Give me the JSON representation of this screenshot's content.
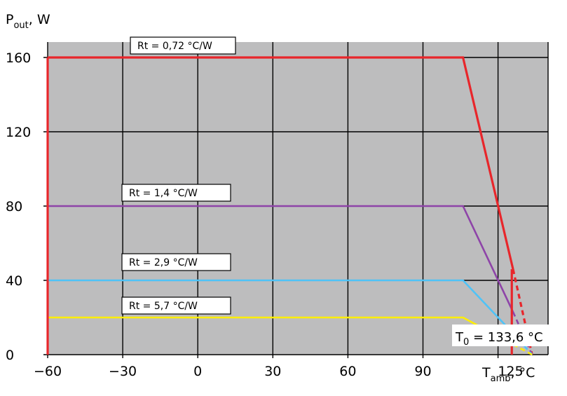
{
  "chart_data": {
    "type": "line",
    "ylabel": {
      "main": "P",
      "sub": "out",
      "rest": ", W"
    },
    "xlabel": {
      "main": "T",
      "sub": "amb",
      "rest": ", °C"
    },
    "xlim": [
      -60,
      140
    ],
    "ylim": [
      0,
      160
    ],
    "x_ticks": [
      {
        "value": -60,
        "label": "−60"
      },
      {
        "value": -30,
        "label": "−30"
      },
      {
        "value": 0,
        "label": "0"
      },
      {
        "value": 30,
        "label": "30"
      },
      {
        "value": 60,
        "label": "60"
      },
      {
        "value": 90,
        "label": "90"
      },
      {
        "value": 125,
        "label": "125"
      }
    ],
    "x_gridlines": [
      -60,
      -30,
      0,
      30,
      60,
      90,
      120
    ],
    "y_ticks": [
      {
        "value": 0,
        "label": "0"
      },
      {
        "value": 40,
        "label": "40"
      },
      {
        "value": 80,
        "label": "80"
      },
      {
        "value": 120,
        "label": "120"
      },
      {
        "value": 160,
        "label": "160"
      }
    ],
    "grid": true,
    "background": "#bdbdbe",
    "series": [
      {
        "name": "Rt = 0,72 °C/W",
        "color": "#e8262b",
        "points": [
          [
            -60,
            160
          ],
          [
            106,
            160
          ],
          [
            126,
            46
          ]
        ],
        "dashed": [
          [
            126,
            46
          ],
          [
            133.6,
            0
          ]
        ]
      },
      {
        "name": "Rt = 1,4 °C/W",
        "color": "#8e44a8",
        "points": [
          [
            -60,
            80
          ],
          [
            106,
            80
          ],
          [
            126,
            23
          ]
        ],
        "dashed": [
          [
            126,
            23
          ],
          [
            133.6,
            0
          ]
        ]
      },
      {
        "name": "Rt = 2,9 °C/W",
        "color": "#4fc3f7",
        "points": [
          [
            -60,
            40
          ],
          [
            106,
            40
          ],
          [
            126,
            11.5
          ]
        ],
        "dashed": [
          [
            126,
            11.5
          ],
          [
            133.6,
            0
          ]
        ]
      },
      {
        "name": "Rt = 5,7 °C/W",
        "color": "#ffee00",
        "points": [
          [
            -60,
            20
          ],
          [
            106,
            20
          ],
          [
            126,
            5.5
          ]
        ],
        "dashed": [
          [
            126,
            5.5
          ],
          [
            133.6,
            0
          ]
        ]
      }
    ],
    "boundary_lines": [
      {
        "x": -60,
        "y_from": 0,
        "y_to": 160,
        "color": "#e8262b"
      },
      {
        "x": 125.5,
        "y_from": 0,
        "y_to": 46,
        "color": "#e8262b"
      }
    ],
    "annotation": {
      "main": "T",
      "sub": "0",
      "rest": " = 133,6 °C",
      "x": 133.6,
      "y": 0
    }
  }
}
